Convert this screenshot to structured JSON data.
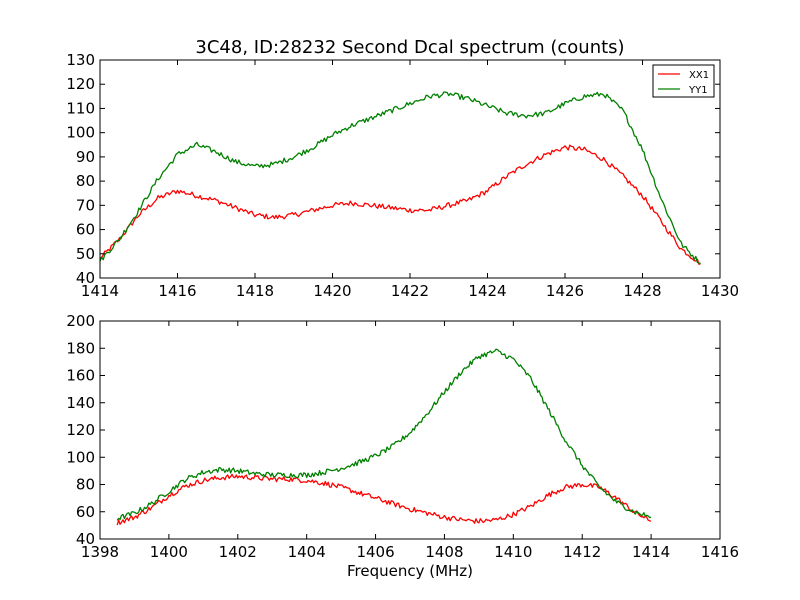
{
  "chart_data": [
    {
      "type": "line",
      "title": "3C48, ID:28232 Second Dcal spectrum (counts)",
      "xlabel": "",
      "ylabel": "",
      "xlim": [
        1414,
        1430
      ],
      "ylim": [
        40,
        130
      ],
      "xticks": [
        "1414",
        "1416",
        "1418",
        "1420",
        "1422",
        "1424",
        "1426",
        "1428",
        "1430"
      ],
      "yticks": [
        "40",
        "50",
        "60",
        "70",
        "80",
        "90",
        "100",
        "110",
        "120",
        "130"
      ],
      "grid": false,
      "legend": "top-right",
      "series": [
        {
          "name": "XX1",
          "color": "#ff0000",
          "x": [
            1414.0,
            1414.5,
            1415.0,
            1415.5,
            1416.0,
            1416.5,
            1417.0,
            1417.5,
            1418.0,
            1418.5,
            1419.0,
            1419.5,
            1420.0,
            1420.5,
            1421.0,
            1421.5,
            1422.0,
            1422.5,
            1423.0,
            1423.5,
            1424.0,
            1424.5,
            1425.0,
            1425.5,
            1426.0,
            1426.5,
            1427.0,
            1427.5,
            1428.0,
            1428.5,
            1429.0,
            1429.5
          ],
          "values": [
            48,
            56,
            66,
            73,
            76,
            74,
            72,
            69,
            66,
            65,
            66,
            68,
            70,
            71,
            70,
            69,
            68,
            68,
            70,
            72,
            76,
            82,
            87,
            91,
            94,
            93,
            89,
            82,
            74,
            63,
            52,
            46
          ]
        },
        {
          "name": "YY1",
          "color": "#008000",
          "x": [
            1414.0,
            1414.5,
            1415.0,
            1415.5,
            1416.0,
            1416.5,
            1417.0,
            1417.5,
            1418.0,
            1418.5,
            1419.0,
            1419.5,
            1420.0,
            1420.5,
            1421.0,
            1421.5,
            1422.0,
            1422.5,
            1423.0,
            1423.5,
            1424.0,
            1424.5,
            1425.0,
            1425.5,
            1426.0,
            1426.5,
            1427.0,
            1427.5,
            1428.0,
            1428.5,
            1429.0,
            1429.5
          ],
          "values": [
            47,
            56,
            68,
            81,
            91,
            95,
            92,
            88,
            86,
            87,
            90,
            94,
            99,
            103,
            106,
            109,
            112,
            115,
            116,
            114,
            111,
            108,
            107,
            108,
            112,
            115,
            116,
            109,
            93,
            72,
            54,
            46
          ]
        }
      ]
    },
    {
      "type": "line",
      "title": "",
      "xlabel": "Frequency (MHz)",
      "ylabel": "",
      "xlim": [
        1398,
        1416
      ],
      "ylim": [
        40,
        200
      ],
      "xticks": [
        "1398",
        "1400",
        "1402",
        "1404",
        "1406",
        "1408",
        "1410",
        "1412",
        "1414",
        "1416"
      ],
      "yticks": [
        "40",
        "60",
        "80",
        "100",
        "120",
        "140",
        "160",
        "180",
        "200"
      ],
      "grid": false,
      "series": [
        {
          "name": "XX1",
          "color": "#ff0000",
          "x": [
            1398.5,
            1399.0,
            1399.5,
            1400.0,
            1400.5,
            1401.0,
            1401.5,
            1402.0,
            1402.5,
            1403.0,
            1403.5,
            1404.0,
            1404.5,
            1405.0,
            1405.5,
            1406.0,
            1406.5,
            1407.0,
            1407.5,
            1408.0,
            1408.5,
            1409.0,
            1409.5,
            1410.0,
            1410.5,
            1411.0,
            1411.5,
            1412.0,
            1412.5,
            1413.0,
            1413.5,
            1414.0
          ],
          "values": [
            52,
            56,
            63,
            72,
            79,
            83,
            85,
            86,
            85,
            84,
            84,
            83,
            81,
            78,
            74,
            70,
            66,
            62,
            59,
            56,
            54,
            53,
            54,
            58,
            64,
            72,
            78,
            80,
            78,
            70,
            60,
            53
          ]
        },
        {
          "name": "YY1",
          "color": "#008000",
          "x": [
            1398.5,
            1399.0,
            1399.5,
            1400.0,
            1400.5,
            1401.0,
            1401.5,
            1402.0,
            1402.5,
            1403.0,
            1403.5,
            1404.0,
            1404.5,
            1405.0,
            1405.5,
            1406.0,
            1406.5,
            1407.0,
            1407.5,
            1408.0,
            1408.5,
            1409.0,
            1409.5,
            1410.0,
            1410.5,
            1411.0,
            1411.5,
            1412.0,
            1412.5,
            1413.0,
            1413.5,
            1414.0
          ],
          "values": [
            55,
            59,
            66,
            75,
            84,
            89,
            91,
            90,
            88,
            87,
            87,
            87,
            89,
            92,
            96,
            101,
            108,
            118,
            132,
            148,
            163,
            174,
            178,
            172,
            158,
            136,
            113,
            94,
            78,
            67,
            60,
            56
          ]
        }
      ]
    }
  ]
}
